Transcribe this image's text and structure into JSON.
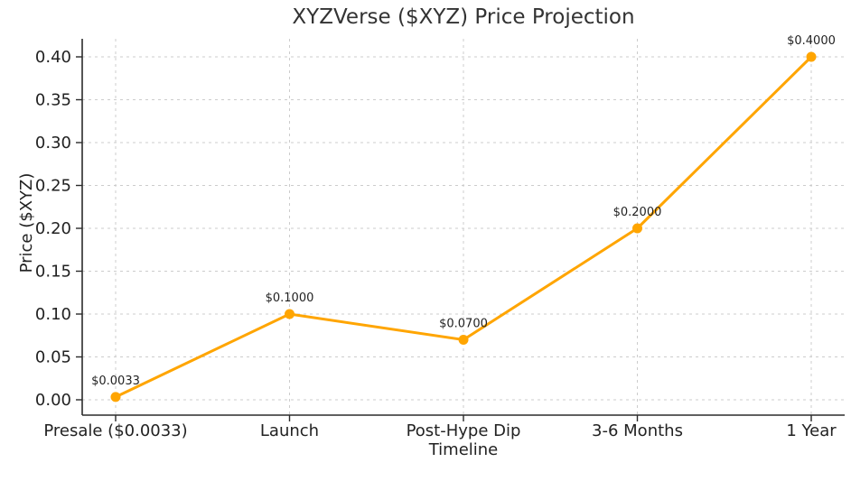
{
  "chart_data": {
    "type": "line",
    "title": "XYZVerse ($XYZ) Price Projection",
    "xlabel": "Timeline",
    "ylabel": "Price ($XYZ)",
    "categories": [
      "Presale ($0.0033)",
      "Launch",
      "Post-Hype Dip",
      "3-6 Months",
      "1 Year"
    ],
    "values": [
      0.0033,
      0.1,
      0.07,
      0.2,
      0.4
    ],
    "point_labels": [
      "$0.0033",
      "$0.1000",
      "$0.0700",
      "$0.2000",
      "$0.4000"
    ],
    "yticks": [
      0.0,
      0.05,
      0.1,
      0.15,
      0.2,
      0.25,
      0.3,
      0.35,
      0.4
    ],
    "ytick_labels": [
      "0.00",
      "0.05",
      "0.10",
      "0.15",
      "0.20",
      "0.25",
      "0.30",
      "0.35",
      "0.40"
    ],
    "ylim": [
      0.0,
      0.42
    ],
    "grid": true,
    "legend": "none",
    "line_color": "#FFA500",
    "marker_color": "#FFA500",
    "grid_color": "#CCCCCC",
    "axis_color": "#2B2B2B",
    "text_color": "#222222",
    "title_color": "#333333"
  }
}
